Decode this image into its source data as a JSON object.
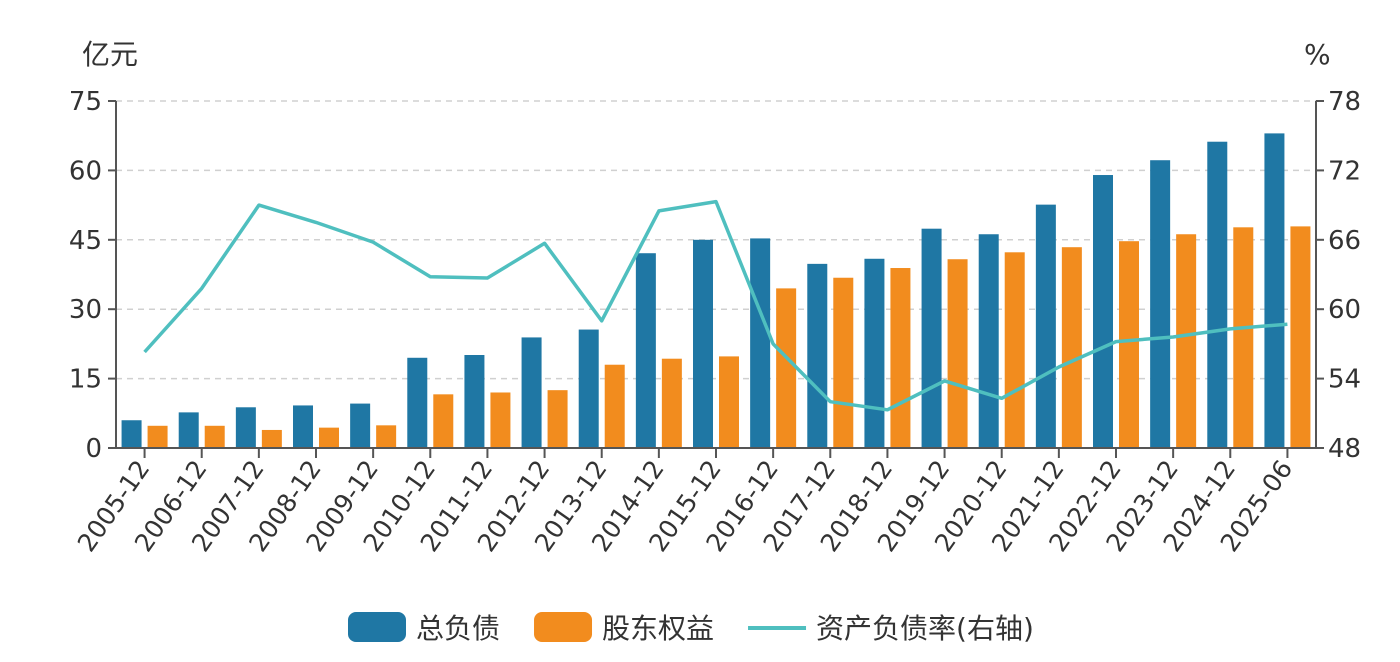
{
  "chart_data": {
    "type": "bar",
    "categories": [
      "2005-12",
      "2006-12",
      "2007-12",
      "2008-12",
      "2009-12",
      "2010-12",
      "2011-12",
      "2012-12",
      "2013-12",
      "2014-12",
      "2015-12",
      "2016-12",
      "2017-12",
      "2018-12",
      "2019-12",
      "2020-12",
      "2021-12",
      "2022-12",
      "2023-12",
      "2024-12",
      "2025-06"
    ],
    "series": [
      {
        "name": "总负债",
        "type": "bar",
        "axis": "left",
        "color": "#1f77a4",
        "values": [
          6.0,
          7.7,
          8.8,
          9.2,
          9.6,
          19.5,
          20.1,
          23.9,
          25.6,
          42.1,
          45.0,
          45.3,
          39.8,
          40.9,
          47.4,
          46.2,
          52.6,
          59.0,
          62.2,
          66.2,
          68.0
        ]
      },
      {
        "name": "股东权益",
        "type": "bar",
        "axis": "left",
        "color": "#f28c1e",
        "values": [
          4.8,
          4.8,
          3.9,
          4.4,
          4.9,
          11.6,
          12.0,
          12.5,
          18.0,
          19.3,
          19.8,
          34.5,
          36.8,
          38.9,
          40.8,
          42.3,
          43.4,
          44.7,
          46.2,
          47.7,
          47.9
        ]
      },
      {
        "name": "资产负债率(右轴)",
        "type": "line",
        "axis": "right",
        "color": "#4fbfbf",
        "values": [
          56.3,
          61.8,
          69.0,
          67.5,
          65.8,
          62.8,
          62.7,
          65.7,
          59.0,
          68.5,
          69.3,
          57.0,
          52.0,
          51.3,
          53.8,
          52.3,
          55.0,
          57.2,
          57.6,
          58.3,
          58.7
        ]
      }
    ],
    "y_left": {
      "unit": "亿元",
      "min": 0,
      "max": 75,
      "ticks": [
        "0",
        "15",
        "30",
        "45",
        "60",
        "75"
      ]
    },
    "y_right": {
      "unit": "%",
      "min": 48,
      "max": 78,
      "ticks": [
        "48",
        "54",
        "60",
        "66",
        "72",
        "78"
      ]
    },
    "grid": true,
    "legend_position": "bottom"
  }
}
